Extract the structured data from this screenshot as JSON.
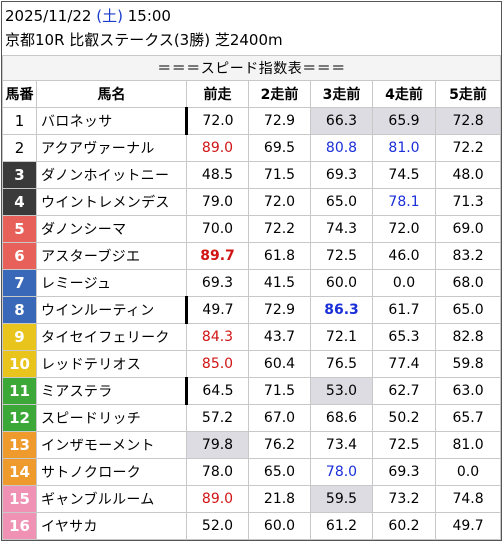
{
  "header": {
    "date": "2025/11/22",
    "weekday": "(土)",
    "time": "15:00",
    "race": "京都10R 比叡ステークス(3勝) 芝2400m"
  },
  "table": {
    "title": "＝＝＝スピード指数表＝＝＝",
    "columns": [
      "馬番",
      "馬名",
      "前走",
      "2走前",
      "3走前",
      "4走前",
      "5走前"
    ],
    "frame_colors": {
      "1": "#ffffff",
      "2": "#ffffff",
      "3": "#3a3a3a",
      "4": "#3a3a3a",
      "5": "#e8605a",
      "6": "#e8605a",
      "7": "#3a68b8",
      "8": "#3a68b8",
      "9": "#e8c41c",
      "10": "#e8c41c",
      "11": "#3ca838",
      "12": "#3ca838",
      "13": "#ef9a2c",
      "14": "#ef9a2c",
      "15": "#ef92b4",
      "16": "#ef92b4"
    },
    "rows": [
      {
        "no": "1",
        "name": "バロネッサ",
        "marked": true,
        "vals": [
          "72.0",
          "72.9",
          "66.3",
          "65.9",
          "72.8"
        ],
        "styles": [
          "",
          "",
          "gray",
          "gray",
          "gray"
        ]
      },
      {
        "no": "2",
        "name": "アクアヴァーナル",
        "marked": false,
        "vals": [
          "89.0",
          "69.5",
          "80.8",
          "81.0",
          "72.2"
        ],
        "styles": [
          "red",
          "",
          "blue",
          "blue",
          ""
        ]
      },
      {
        "no": "3",
        "name": "ダノンホイットニー",
        "marked": false,
        "vals": [
          "48.5",
          "71.5",
          "69.3",
          "74.5",
          "48.0"
        ],
        "styles": [
          "",
          "",
          "",
          "",
          ""
        ]
      },
      {
        "no": "4",
        "name": "ウイントレメンデス",
        "marked": false,
        "vals": [
          "79.0",
          "72.0",
          "65.0",
          "78.1",
          "71.3"
        ],
        "styles": [
          "",
          "",
          "",
          "blue",
          ""
        ]
      },
      {
        "no": "5",
        "name": "ダノンシーマ",
        "marked": false,
        "vals": [
          "70.0",
          "72.2",
          "74.3",
          "72.0",
          "69.0"
        ],
        "styles": [
          "",
          "",
          "",
          "",
          ""
        ]
      },
      {
        "no": "6",
        "name": "アスターブジエ",
        "marked": false,
        "vals": [
          "89.7",
          "61.8",
          "72.5",
          "46.0",
          "83.2"
        ],
        "styles": [
          "red bold",
          "",
          "",
          "",
          ""
        ]
      },
      {
        "no": "7",
        "name": "レミージュ",
        "marked": false,
        "vals": [
          "69.3",
          "41.5",
          "60.0",
          "0.0",
          "68.0"
        ],
        "styles": [
          "",
          "",
          "",
          "",
          ""
        ]
      },
      {
        "no": "8",
        "name": "ウインルーティン",
        "marked": true,
        "vals": [
          "49.7",
          "72.9",
          "86.3",
          "61.7",
          "65.0"
        ],
        "styles": [
          "",
          "",
          "blue bold",
          "",
          ""
        ]
      },
      {
        "no": "9",
        "name": "タイセイフェリーク",
        "marked": false,
        "vals": [
          "84.3",
          "43.7",
          "72.1",
          "65.3",
          "82.8"
        ],
        "styles": [
          "red",
          "",
          "",
          "",
          ""
        ]
      },
      {
        "no": "10",
        "name": "レッドテリオス",
        "marked": false,
        "vals": [
          "85.0",
          "60.4",
          "76.5",
          "77.4",
          "59.8"
        ],
        "styles": [
          "red",
          "",
          "",
          "",
          ""
        ]
      },
      {
        "no": "11",
        "name": "ミアステラ",
        "marked": true,
        "vals": [
          "64.5",
          "71.5",
          "53.0",
          "62.7",
          "63.0"
        ],
        "styles": [
          "",
          "",
          "gray",
          "",
          ""
        ]
      },
      {
        "no": "12",
        "name": "スピードリッチ",
        "marked": false,
        "vals": [
          "57.2",
          "67.0",
          "68.6",
          "50.2",
          "65.7"
        ],
        "styles": [
          "",
          "",
          "",
          "",
          ""
        ]
      },
      {
        "no": "13",
        "name": "インザモーメント",
        "marked": false,
        "vals": [
          "79.8",
          "76.2",
          "73.4",
          "72.5",
          "81.0"
        ],
        "styles": [
          "gray",
          "",
          "",
          "",
          ""
        ]
      },
      {
        "no": "14",
        "name": "サトノクローク",
        "marked": false,
        "vals": [
          "78.0",
          "65.0",
          "78.0",
          "69.3",
          "0.0"
        ],
        "styles": [
          "",
          "",
          "blue",
          "",
          ""
        ]
      },
      {
        "no": "15",
        "name": "ギャンブルルーム",
        "marked": false,
        "vals": [
          "89.0",
          "21.8",
          "59.5",
          "73.2",
          "74.8"
        ],
        "styles": [
          "red",
          "",
          "gray",
          "",
          ""
        ]
      },
      {
        "no": "16",
        "name": "イヤサカ",
        "marked": false,
        "vals": [
          "52.0",
          "60.0",
          "61.2",
          "60.2",
          "49.7"
        ],
        "styles": [
          "",
          "",
          "",
          "",
          ""
        ]
      }
    ]
  }
}
